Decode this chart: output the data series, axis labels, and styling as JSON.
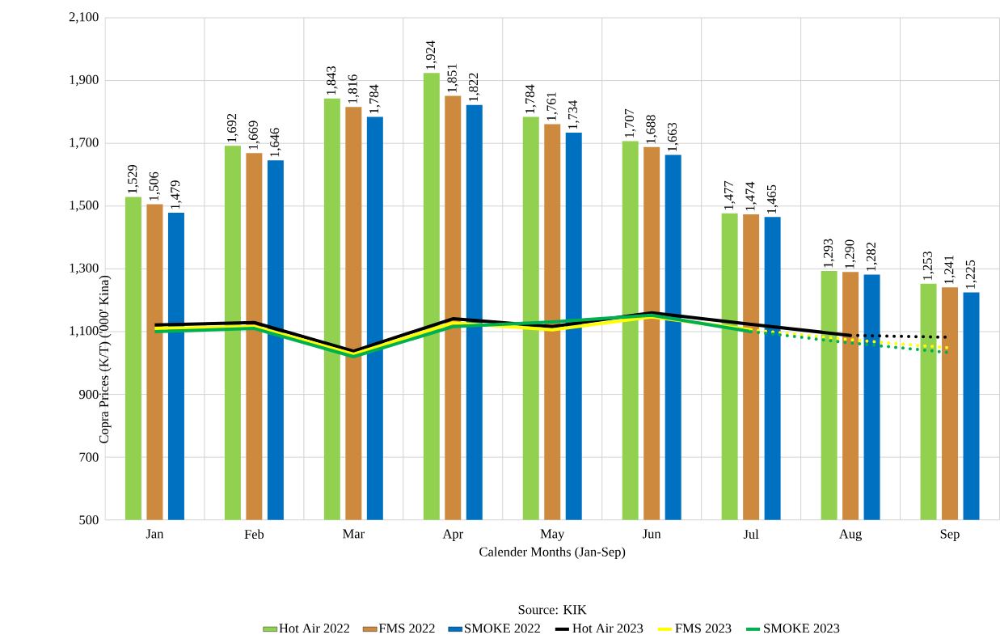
{
  "chart_data": {
    "type": "bar",
    "xlabel": "Calender Months (Jan-Sep)",
    "ylabel": "Copra Prices (K/T) ('000' Kina)",
    "categories": [
      "Jan",
      "Feb",
      "Mar",
      "Apr",
      "May",
      "Jun",
      "Jul",
      "Aug",
      "Sep"
    ],
    "ylim": [
      500,
      2100
    ],
    "yticks": [
      {
        "value": 500,
        "label": "500"
      },
      {
        "value": 700,
        "label": "700"
      },
      {
        "value": 900,
        "label": "900"
      },
      {
        "value": 1100,
        "label": "1,100"
      },
      {
        "value": 1300,
        "label": "1,300"
      },
      {
        "value": 1500,
        "label": "1,500"
      },
      {
        "value": 1700,
        "label": "1,700"
      },
      {
        "value": 1900,
        "label": "1,900"
      },
      {
        "value": 2100,
        "label": "2,100"
      }
    ],
    "grid": true,
    "legend": "bottom",
    "annotations": [
      "Source: KIK"
    ],
    "series": [
      {
        "name": "Hot Air 2022",
        "color": "#92d050",
        "values": [
          1529,
          1692,
          1843,
          1924,
          1784,
          1707,
          1477,
          1293,
          1253
        ],
        "value_labels": [
          "1,529",
          "1,692",
          "1,843",
          "1,924",
          "1,784",
          "1,707",
          "1,477",
          "1,293",
          "1,253"
        ]
      },
      {
        "name": "FMS 2022",
        "color": "#cd8a3f",
        "values": [
          1506,
          1669,
          1816,
          1851,
          1761,
          1688,
          1474,
          1290,
          1241
        ],
        "value_labels": [
          "1,506",
          "1,669",
          "1,816",
          "1,851",
          "1,761",
          "1,688",
          "1,474",
          "1,290",
          "1,241"
        ]
      },
      {
        "name": "SMOKE 2022",
        "color": "#0070c0",
        "values": [
          1479,
          1646,
          1784,
          1822,
          1734,
          1663,
          1465,
          1282,
          1225
        ],
        "value_labels": [
          "1,479",
          "1,646",
          "1,784",
          "1,822",
          "1,734",
          "1,663",
          "1,465",
          "1,282",
          "1,225"
        ]
      },
      {
        "name": "Hot Air 2023",
        "type": "line",
        "line_style": "solid",
        "color": "#000000",
        "values": [
          1121,
          1129,
          1038,
          1141,
          1116,
          1160,
          1123,
          1088,
          null
        ]
      },
      {
        "name": "FMS 2023",
        "type": "line",
        "line_style": "solid",
        "color": "#ffff00",
        "values": [
          1110,
          1116,
          1028,
          1128,
          1106,
          1147,
          1106,
          null,
          null
        ]
      },
      {
        "name": "SMOKE 2023",
        "type": "line",
        "line_style": "solid",
        "color": "#00b050",
        "values": [
          1100,
          1110,
          1020,
          1116,
          1131,
          1152,
          1100,
          null,
          null
        ]
      },
      {
        "type": "line",
        "line_style": "dotted",
        "color": "#000000",
        "values": [
          null,
          null,
          null,
          null,
          null,
          null,
          null,
          1088,
          1082
        ]
      },
      {
        "type": "line",
        "line_style": "dotted",
        "color": "#ffff00",
        "values": [
          null,
          null,
          null,
          null,
          null,
          null,
          1106,
          1074,
          1048
        ]
      },
      {
        "type": "line",
        "line_style": "dotted",
        "color": "#00b050",
        "values": [
          null,
          null,
          null,
          null,
          null,
          null,
          1100,
          1064,
          1033
        ]
      }
    ]
  }
}
